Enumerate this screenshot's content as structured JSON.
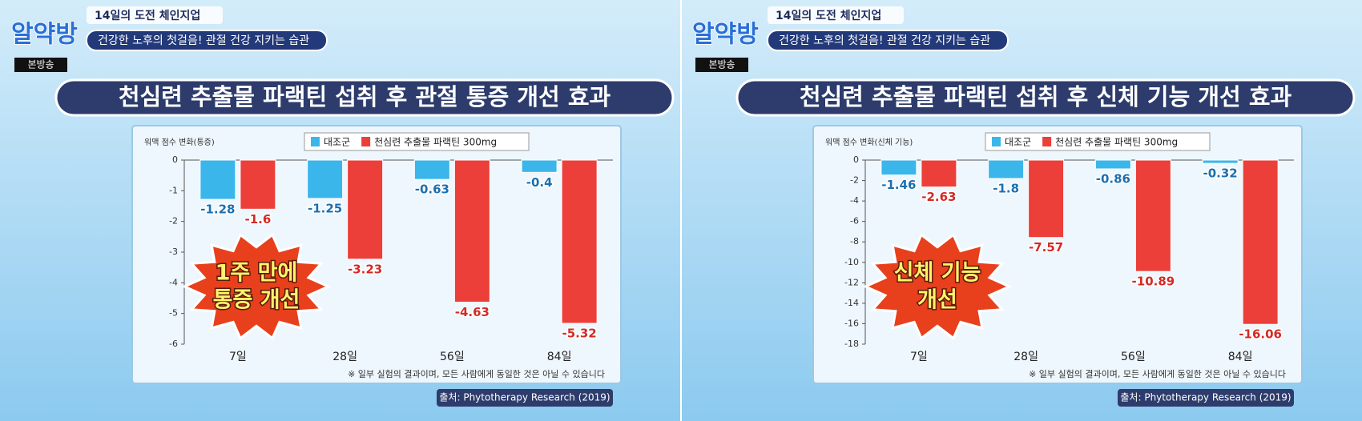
{
  "panels": [
    {
      "logo": "알약방",
      "program": "14일의 도전 체인지업",
      "subtitle": "건강한 노후의 첫걸음! 관절 건강 지키는 습관",
      "tag": "본방송"
    },
    {
      "logo": "알약방",
      "program": "14일의 도전 체인지업",
      "subtitle": "건강한 노후의 첫걸음! 관절 건강 지키는 습관",
      "tag": "본방송"
    }
  ],
  "chart_data": [
    {
      "type": "bar",
      "title": "천심련 추출물 파랙틴 섭취 후 관절 통증 개선 효과",
      "y_label": "워맥 점수 변화(통증)",
      "categories": [
        "7일",
        "28일",
        "56일",
        "84일"
      ],
      "series": [
        {
          "name": "대조군",
          "color": "#3bb6ea",
          "values": [
            -1.28,
            -1.25,
            -0.63,
            -0.4
          ]
        },
        {
          "name": "천심련 추출물 파랙틴 300mg",
          "color": "#ec3f3a",
          "values": [
            -1.6,
            -3.23,
            -4.63,
            -5.32
          ]
        }
      ],
      "ylim": [
        -6,
        0
      ],
      "yticks": [
        0,
        -1,
        -2,
        -3,
        -4,
        -5,
        -6
      ],
      "badge": [
        "1주 만에",
        "통증 개선"
      ],
      "note": "※ 일부 실험의 결과이며, 모든 사람에게 동일한 것은 아닐 수 있습니다",
      "source": "출처: Phytotherapy Research (2019)"
    },
    {
      "type": "bar",
      "title": "천심련 추출물 파랙틴 섭취 후 신체 기능 개선 효과",
      "y_label": "워맥 점수 변화(신체 기능)",
      "categories": [
        "7일",
        "28일",
        "56일",
        "84일"
      ],
      "series": [
        {
          "name": "대조군",
          "color": "#3bb6ea",
          "values": [
            -1.46,
            -1.8,
            -0.86,
            -0.32
          ]
        },
        {
          "name": "천심련 추출물 파랙틴 300mg",
          "color": "#ec3f3a",
          "values": [
            -2.63,
            -7.57,
            -10.89,
            -16.06
          ]
        }
      ],
      "ylim": [
        -18,
        0
      ],
      "yticks": [
        0,
        -2,
        -4,
        -6,
        -8,
        -10,
        -12,
        -14,
        -16,
        -18
      ],
      "badge": [
        "신체 기능",
        "개선"
      ],
      "note": "※ 일부 실험의 결과이며, 모든 사람에게 동일한 것은 아닐 수 있습니다",
      "source": "출처: Phytotherapy Research (2019)"
    }
  ]
}
